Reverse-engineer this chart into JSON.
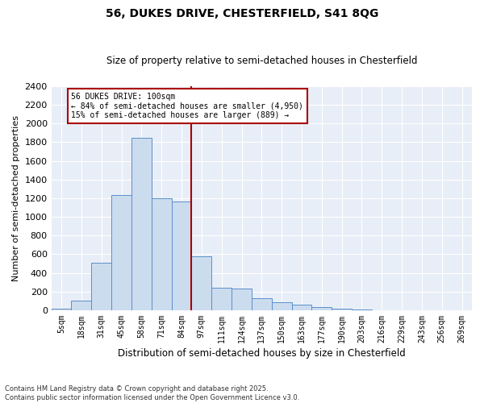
{
  "title1": "56, DUKES DRIVE, CHESTERFIELD, S41 8QG",
  "title2": "Size of property relative to semi-detached houses in Chesterfield",
  "xlabel": "Distribution of semi-detached houses by size in Chesterfield",
  "ylabel": "Number of semi-detached properties",
  "categories": [
    "5sqm",
    "18sqm",
    "31sqm",
    "45sqm",
    "58sqm",
    "71sqm",
    "84sqm",
    "97sqm",
    "111sqm",
    "124sqm",
    "137sqm",
    "150sqm",
    "163sqm",
    "177sqm",
    "190sqm",
    "203sqm",
    "216sqm",
    "229sqm",
    "243sqm",
    "256sqm",
    "269sqm"
  ],
  "values": [
    15,
    105,
    510,
    1230,
    1850,
    1200,
    1160,
    580,
    240,
    230,
    130,
    90,
    60,
    35,
    20,
    8,
    3,
    2,
    1,
    1,
    1
  ],
  "bar_color": "#ccdcef",
  "bar_edge_color": "#5b8fc9",
  "highlight_bin_index": 7,
  "vline_color": "#aa0000",
  "annotation_text": "56 DUKES DRIVE: 100sqm\n← 84% of semi-detached houses are smaller (4,950)\n15% of semi-detached houses are larger (889) →",
  "annotation_box_color": "#ffffff",
  "annotation_box_edge": "#aa0000",
  "footer": "Contains HM Land Registry data © Crown copyright and database right 2025.\nContains public sector information licensed under the Open Government Licence v3.0.",
  "bg_color": "#e8eef7",
  "ylim": [
    0,
    2400
  ],
  "yticks": [
    0,
    200,
    400,
    600,
    800,
    1000,
    1200,
    1400,
    1600,
    1800,
    2000,
    2200,
    2400
  ]
}
